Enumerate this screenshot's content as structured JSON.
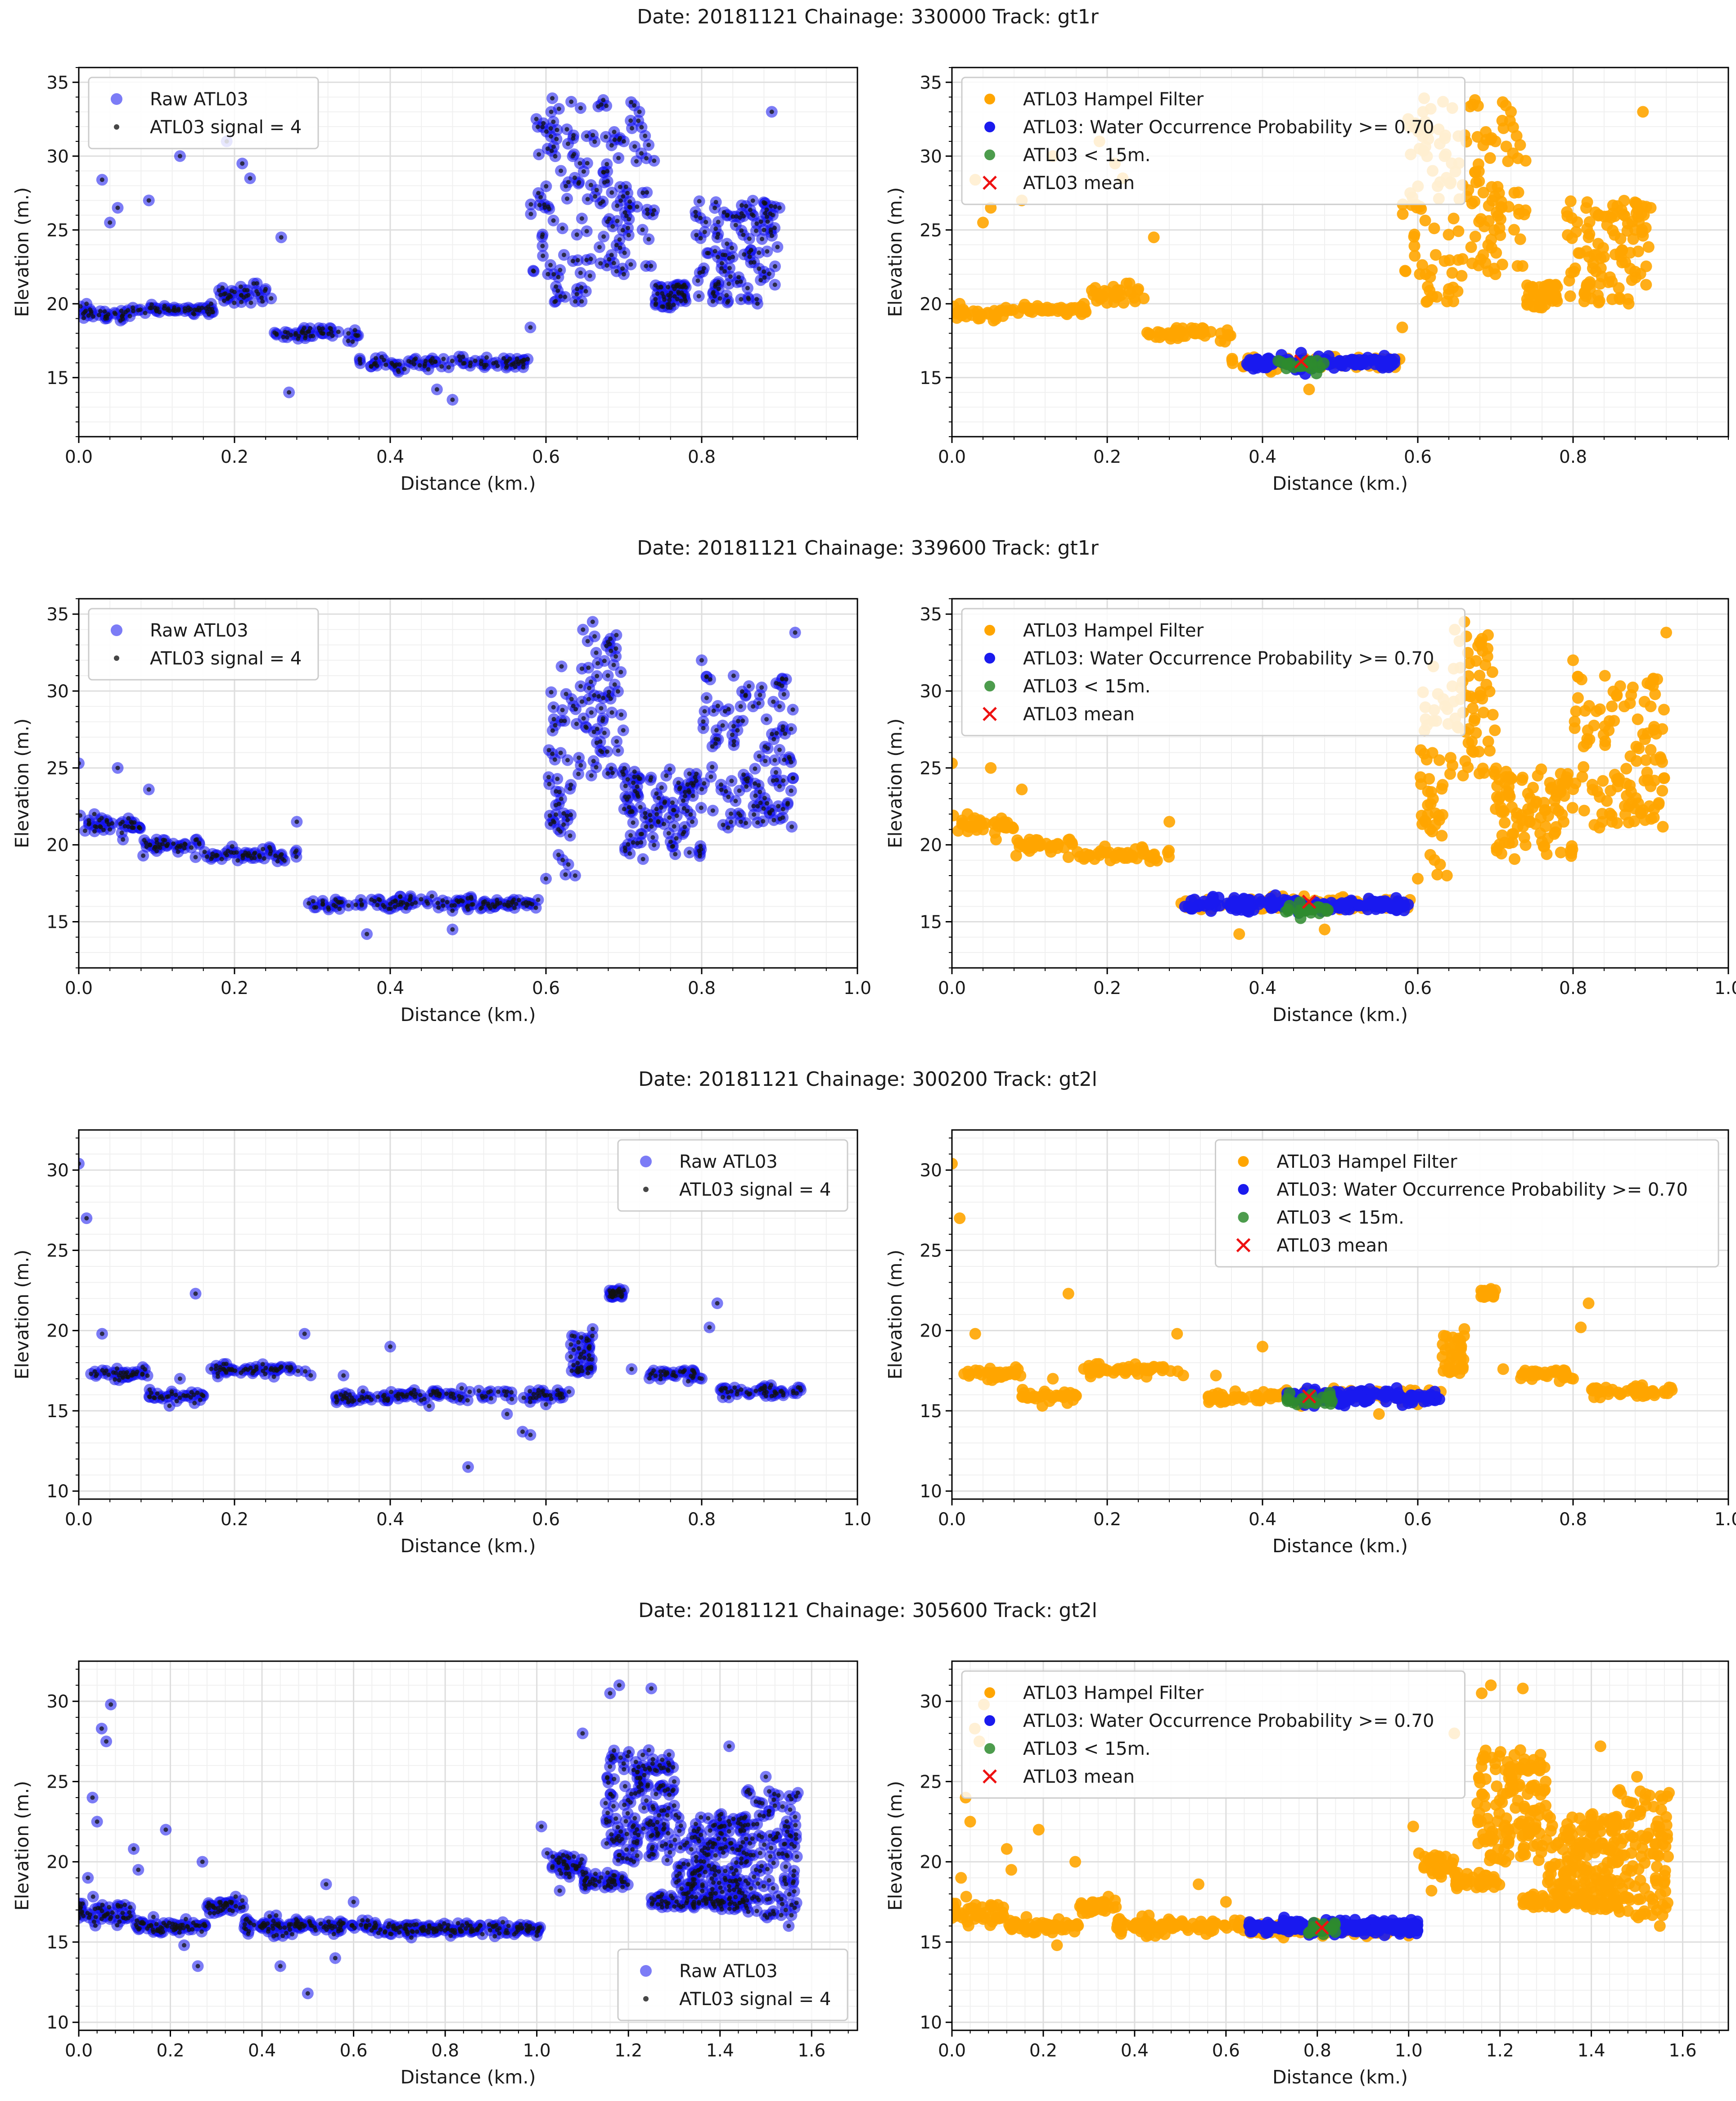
{
  "chart_data": [
    {
      "title": "Date: 20181121 Chainage: 330000 Track: gt1r",
      "xlim": [
        0,
        1.0
      ],
      "xticks_left": [
        0.0,
        0.2,
        0.4,
        0.6,
        0.8
      ],
      "xticks_right": [
        0.0,
        0.2,
        0.4,
        0.6,
        0.8
      ],
      "ylim": [
        11,
        36
      ],
      "yticks": [
        15,
        20,
        25,
        30,
        35
      ],
      "xlabel": "Distance (km.)",
      "ylabel": "Elevation (m.)",
      "left": {
        "type": "scatter",
        "legend_loc": "top-left",
        "legend": [
          "Raw ATL03",
          "ATL03 signal = 4"
        ],
        "segments": [
          [
            0,
            0.06,
            19.2,
            0.4
          ],
          [
            0.06,
            0.18,
            19.6,
            0.3
          ],
          [
            0.18,
            0.25,
            20.6,
            0.6
          ],
          [
            0.25,
            0.36,
            18.0,
            0.5
          ],
          [
            0.36,
            0.58,
            16.0,
            0.4
          ]
        ],
        "scatter_pts": [
          [
            0.04,
            25.5
          ],
          [
            0.05,
            26.5
          ],
          [
            0.09,
            27.0
          ],
          [
            0.13,
            30.0
          ],
          [
            0.19,
            31.0
          ],
          [
            0.21,
            29.5
          ],
          [
            0.22,
            28.5
          ],
          [
            0.26,
            24.5
          ],
          [
            0.27,
            14.0
          ],
          [
            0.48,
            13.5
          ],
          [
            0.58,
            18.4
          ],
          [
            0.89,
            33.0
          ]
        ],
        "clusters": [
          [
            0.58,
            0.66,
            27,
            7
          ],
          [
            0.66,
            0.74,
            28,
            6
          ],
          [
            0.74,
            0.78,
            20.5,
            0.8
          ],
          [
            0.79,
            0.9,
            23.5,
            3.5
          ]
        ],
        "dots": [
          [
            0.01,
            20.0
          ],
          [
            0.03,
            28.4
          ],
          [
            0.1,
            19.5
          ],
          [
            0.17,
            20.0
          ],
          [
            0.2,
            20.8
          ],
          [
            0.24,
            21.0
          ],
          [
            0.41,
            15.5
          ],
          [
            0.46,
            14.2
          ],
          [
            0.55,
            15.8
          ],
          [
            0.61,
            22.0
          ],
          [
            0.64,
            21.0
          ],
          [
            0.7,
            31.0
          ],
          [
            0.72,
            33.0
          ],
          [
            0.77,
            20.8
          ],
          [
            0.82,
            24.5
          ],
          [
            0.85,
            21.5
          ],
          [
            0.88,
            25.0
          ],
          [
            0.9,
            26.5
          ]
        ]
      },
      "right": {
        "legend_loc": "top-left",
        "legend": [
          "ATL03 Hampel Filter",
          "ATL03: Water Occurrence Probability >= 0.70",
          "ATL03 < 15m.",
          "ATL03 mean"
        ],
        "water_range": [
          0.38,
          0.57
        ],
        "water_level": 16.0,
        "mean": [
          0.45,
          16.1
        ],
        "green_level": 15.9
      }
    },
    {
      "title": "Date: 20181121 Chainage: 339600 Track: gt1r",
      "xlim": [
        0,
        1.0
      ],
      "xticks_left": [
        0.0,
        0.2,
        0.4,
        0.6,
        0.8,
        1.0
      ],
      "xticks_right": [
        0.0,
        0.2,
        0.4,
        0.6,
        0.8,
        1.0
      ],
      "ylim": [
        12,
        36
      ],
      "yticks": [
        15,
        20,
        25,
        30,
        35
      ],
      "xlabel": "Distance (km.)",
      "ylabel": "Elevation (m.)",
      "left": {
        "type": "scatter",
        "legend_loc": "top-left",
        "legend": [
          "Raw ATL03",
          "ATL03 signal = 4"
        ],
        "segments": [
          [
            0,
            0.08,
            21.3,
            0.5
          ],
          [
            0.08,
            0.16,
            20.0,
            0.4
          ],
          [
            0.16,
            0.28,
            19.3,
            0.4
          ],
          [
            0.29,
            0.6,
            16.2,
            0.4
          ]
        ],
        "scatter_pts": [
          [
            0.0,
            25.3
          ],
          [
            0.05,
            25.0
          ],
          [
            0.09,
            23.6
          ],
          [
            0.28,
            21.5
          ],
          [
            0.37,
            14.2
          ],
          [
            0.48,
            14.5
          ],
          [
            0.6,
            17.8
          ],
          [
            0.92,
            33.8
          ]
        ],
        "clusters": [
          [
            0.6,
            0.64,
            24,
            6
          ],
          [
            0.64,
            0.7,
            29,
            5
          ],
          [
            0.7,
            0.8,
            22,
            3
          ],
          [
            0.8,
            0.92,
            26,
            5
          ]
        ],
        "dots": [
          [
            0.02,
            22.0
          ],
          [
            0.04,
            21.0
          ],
          [
            0.1,
            19.6
          ],
          [
            0.15,
            19.2
          ],
          [
            0.22,
            19.3
          ],
          [
            0.33,
            16.0
          ],
          [
            0.5,
            15.8
          ],
          [
            0.62,
            31.6
          ],
          [
            0.66,
            34.5
          ],
          [
            0.76,
            20.2
          ],
          [
            0.8,
            32.0
          ],
          [
            0.85,
            29.0
          ],
          [
            0.9,
            29.0
          ]
        ]
      },
      "right": {
        "legend_loc": "top-left",
        "legend": [
          "ATL03 Hampel Filter",
          "ATL03: Water Occurrence Probability >= 0.70",
          "ATL03 < 15m.",
          "ATL03 mean"
        ],
        "water_range": [
          0.3,
          0.59
        ],
        "water_level": 16.1,
        "mean": [
          0.46,
          16.3
        ],
        "green_level": 15.8
      }
    },
    {
      "title": "Date: 20181121 Chainage: 300200 Track: gt2l",
      "xlim": [
        0,
        1.0
      ],
      "xticks_left": [
        0.0,
        0.2,
        0.4,
        0.6,
        0.8,
        1.0
      ],
      "xticks_right": [
        0.0,
        0.2,
        0.4,
        0.6,
        0.8,
        1.0
      ],
      "ylim": [
        9.5,
        32.5
      ],
      "yticks": [
        10,
        15,
        20,
        25,
        30
      ],
      "xlabel": "Distance (km.)",
      "ylabel": "Elevation (m.)",
      "left": {
        "type": "scatter",
        "legend_loc": "top-right",
        "legend": [
          "Raw ATL03",
          "ATL03 signal = 4"
        ],
        "segments": [
          [
            0.01,
            0.09,
            17.3,
            0.3
          ],
          [
            0.09,
            0.16,
            15.9,
            0.4
          ],
          [
            0.17,
            0.3,
            17.6,
            0.3
          ],
          [
            0.33,
            0.41,
            15.9,
            0.4
          ],
          [
            0.41,
            0.63,
            16.0,
            0.3
          ],
          [
            0.73,
            0.8,
            17.3,
            0.3
          ],
          [
            0.82,
            0.93,
            16.2,
            0.3
          ]
        ],
        "scatter_pts": [
          [
            0.0,
            30.4
          ],
          [
            0.01,
            27.0
          ],
          [
            0.03,
            19.8
          ],
          [
            0.15,
            22.3
          ],
          [
            0.5,
            11.5
          ],
          [
            0.57,
            13.7
          ],
          [
            0.58,
            13.5
          ],
          [
            0.66,
            20.1
          ],
          [
            0.81,
            20.2
          ],
          [
            0.82,
            21.7
          ]
        ],
        "clusters": [
          [
            0.63,
            0.66,
            18.5,
            1.2
          ],
          [
            0.68,
            0.7,
            22.3,
            0.3
          ]
        ],
        "dots": [
          [
            0.13,
            17.0
          ],
          [
            0.29,
            19.8
          ],
          [
            0.34,
            17.2
          ],
          [
            0.4,
            19.0
          ],
          [
            0.45,
            15.3
          ],
          [
            0.55,
            14.8
          ],
          [
            0.6,
            15.4
          ],
          [
            0.71,
            17.6
          ],
          [
            0.8,
            17.0
          ]
        ]
      },
      "right": {
        "legend_loc": "top-right",
        "legend": [
          "ATL03 Hampel Filter",
          "ATL03: Water Occurrence Probability >= 0.70",
          "ATL03 < 15m.",
          "ATL03 mean"
        ],
        "water_range": [
          0.43,
          0.63
        ],
        "water_level": 15.9,
        "mean": [
          0.46,
          15.9
        ],
        "green_level": 15.7
      }
    },
    {
      "title": "Date: 20181121 Chainage: 305600 Track: gt2l",
      "xlim": [
        0,
        1.7
      ],
      "xticks_left": [
        0.0,
        0.2,
        0.4,
        0.6,
        0.8,
        1.0,
        1.2,
        1.4,
        1.6
      ],
      "xticks_right": [
        0.0,
        0.2,
        0.4,
        0.6,
        0.8,
        1.0,
        1.2,
        1.4,
        1.6
      ],
      "ylim": [
        9.5,
        32.5
      ],
      "yticks": [
        10,
        15,
        20,
        25,
        30
      ],
      "xlabel": "Distance (km.)",
      "ylabel": "Elevation (m.)",
      "left": {
        "type": "scatter",
        "legend_loc": "bottom-right",
        "legend": [
          "Raw ATL03",
          "ATL03 signal = 4"
        ],
        "segments": [
          [
            0,
            0.12,
            16.8,
            0.7
          ],
          [
            0.12,
            0.28,
            16.0,
            0.4
          ],
          [
            0.28,
            0.36,
            17.2,
            0.4
          ],
          [
            0.36,
            0.65,
            16.0,
            0.4
          ],
          [
            0.65,
            1.01,
            15.8,
            0.3
          ],
          [
            1.02,
            1.1,
            19.8,
            0.8
          ],
          [
            1.1,
            1.2,
            18.8,
            0.5
          ],
          [
            1.25,
            1.45,
            17.5,
            0.4
          ]
        ],
        "scatter_pts": [
          [
            0.04,
            22.5
          ],
          [
            0.05,
            28.3
          ],
          [
            0.07,
            29.8
          ],
          [
            0.12,
            20.8
          ],
          [
            0.19,
            22.0
          ],
          [
            0.23,
            14.8
          ],
          [
            0.26,
            13.5
          ],
          [
            0.27,
            20.0
          ],
          [
            0.44,
            13.5
          ],
          [
            0.5,
            11.8
          ],
          [
            0.56,
            14.0
          ],
          [
            1.01,
            22.2
          ],
          [
            1.1,
            28.0
          ],
          [
            1.16,
            30.5
          ],
          [
            1.18,
            31.0
          ],
          [
            1.25,
            30.8
          ],
          [
            1.42,
            27.2
          ],
          [
            1.5,
            25.3
          ]
        ],
        "clusters": [
          [
            1.15,
            1.3,
            23.5,
            3.5
          ],
          [
            1.3,
            1.45,
            20.5,
            2.5
          ],
          [
            1.45,
            1.57,
            20.5,
            4.0
          ]
        ],
        "dots": [
          [
            0.0,
            16.5
          ],
          [
            0.02,
            19.0
          ],
          [
            0.03,
            24.0
          ],
          [
            0.06,
            27.5
          ],
          [
            0.13,
            19.5
          ],
          [
            0.25,
            16.2
          ],
          [
            0.33,
            17.5
          ],
          [
            0.54,
            18.6
          ],
          [
            0.6,
            17.5
          ],
          [
            0.7,
            15.6
          ],
          [
            1.0,
            15.4
          ],
          [
            1.05,
            18.2
          ],
          [
            1.3,
            25.0
          ],
          [
            1.55,
            16.0
          ],
          [
            1.57,
            24.3
          ]
        ]
      },
      "right": {
        "legend_loc": "top-left",
        "legend": [
          "ATL03 Hampel Filter",
          "ATL03: Water Occurrence Probability >= 0.70",
          "ATL03 < 15m.",
          "ATL03 mean"
        ],
        "water_range": [
          0.65,
          1.02
        ],
        "water_level": 15.9,
        "mean": [
          0.81,
          15.9
        ],
        "green_level": 15.8
      }
    }
  ]
}
